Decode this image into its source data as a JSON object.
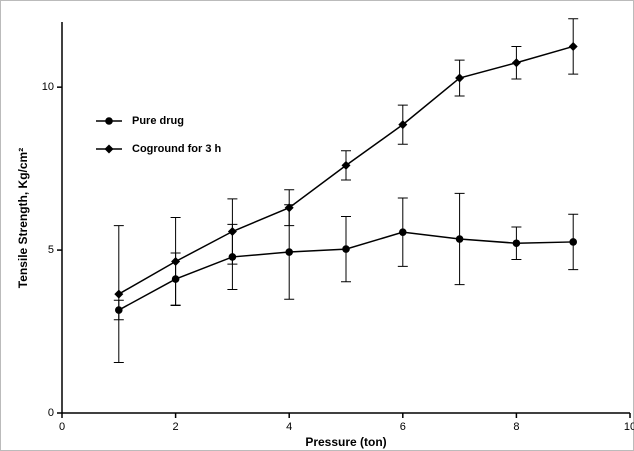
{
  "chart_data": {
    "type": "line",
    "xlabel": "Pressure (ton)",
    "ylabel": "Tensile Strength, Kg/cm²",
    "x": [
      1,
      2,
      3,
      4,
      5,
      6,
      7,
      8,
      9
    ],
    "series": [
      {
        "name": "Pure drug",
        "color": "#000000",
        "marker": "circle",
        "values": [
          3.16,
          4.11,
          4.79,
          4.94,
          5.03,
          5.55,
          5.34,
          5.21,
          5.25
        ],
        "errors": [
          0.3,
          0.8,
          1.0,
          1.45,
          1.0,
          1.05,
          1.4,
          0.5,
          0.85
        ]
      },
      {
        "name": "Coground for 3 h",
        "color": "#000000",
        "marker": "diamond",
        "values": [
          3.65,
          4.65,
          5.57,
          6.3,
          7.6,
          8.85,
          10.28,
          10.75,
          11.25
        ],
        "errors": [
          2.1,
          1.35,
          1.0,
          0.55,
          0.45,
          0.6,
          0.55,
          0.5,
          0.85
        ]
      }
    ],
    "xlim": [
      0,
      10
    ],
    "xticks": [
      0,
      2,
      4,
      6,
      8,
      10
    ],
    "ylim": [
      0,
      12
    ],
    "yticks": [
      0,
      5,
      10
    ],
    "legend": "upper left"
  }
}
